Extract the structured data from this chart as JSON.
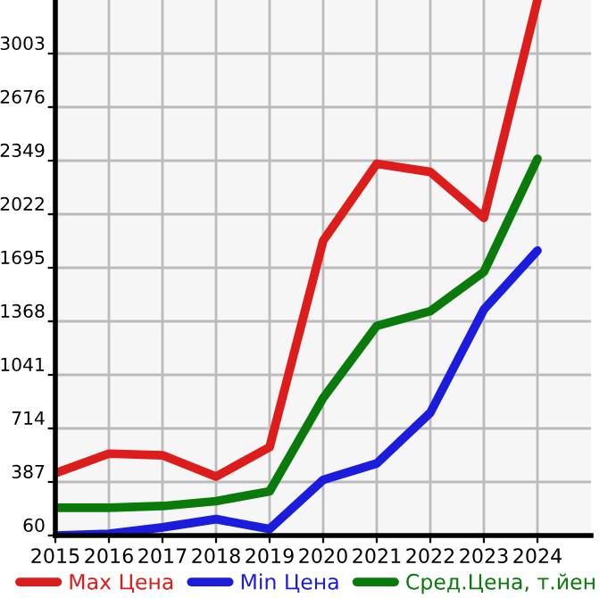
{
  "chart_data": {
    "type": "line",
    "x": [
      2015,
      2016,
      2017,
      2018,
      2019,
      2020,
      2021,
      2022,
      2023,
      2024
    ],
    "series": [
      {
        "name": "Max Цена",
        "color": "#dd1c1c",
        "values": [
          440,
          560,
          550,
          420,
          600,
          1860,
          2330,
          2280,
          2000,
          3330
        ]
      },
      {
        "name": "Min Цена",
        "color": "#1c1cdd",
        "values": [
          60,
          70,
          110,
          160,
          100,
          400,
          500,
          810,
          1440,
          1800
        ]
      },
      {
        "name": "Сред.Цена, т.йен",
        "color": "#0a7a0a",
        "values": [
          230,
          230,
          240,
          270,
          330,
          900,
          1340,
          1430,
          1670,
          2360
        ]
      }
    ],
    "xlim": [
      2015,
      2025
    ],
    "xticks": [
      2015,
      2016,
      2017,
      2018,
      2019,
      2020,
      2021,
      2022,
      2023,
      2024
    ],
    "ylim": [
      60,
      3330
    ],
    "yticks": [
      60,
      387,
      714,
      1041,
      1368,
      1695,
      2022,
      2349,
      2676,
      3003
    ],
    "grid": true,
    "legend": "bottom",
    "marker": "none",
    "line_style": "solid"
  }
}
